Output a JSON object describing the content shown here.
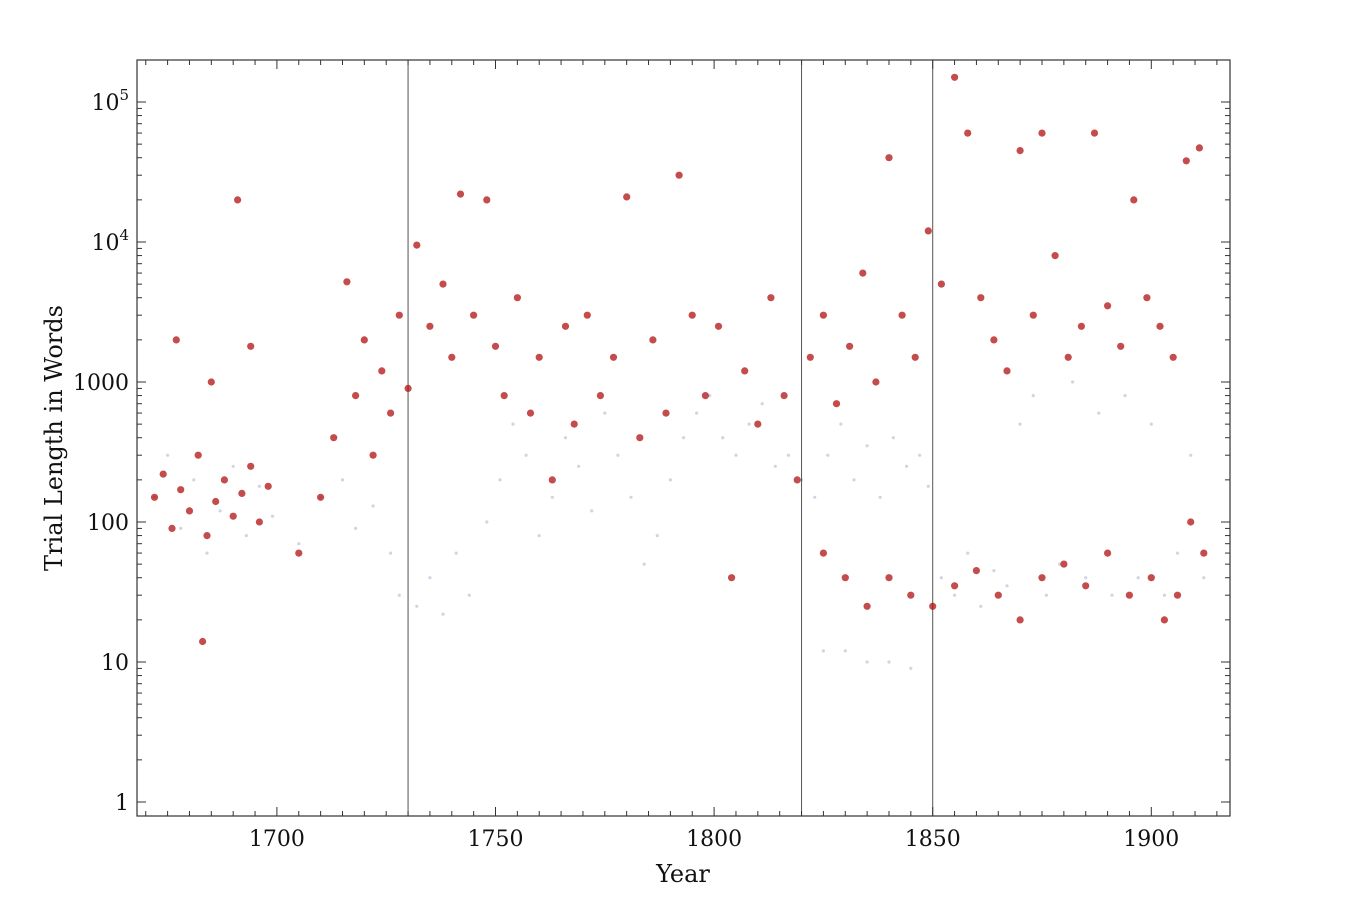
{
  "chart_data": {
    "type": "scatter",
    "xlabel": "Year",
    "ylabel": "Trial Length in Words",
    "xlim": [
      1668,
      1918
    ],
    "ylim_log10": [
      -0.1,
      5.3
    ],
    "y_scale": "log",
    "grid": false,
    "x_ticks": [
      {
        "value": 1700,
        "label": "1700"
      },
      {
        "value": 1750,
        "label": "1750"
      },
      {
        "value": 1800,
        "label": "1800"
      },
      {
        "value": 1850,
        "label": "1850"
      },
      {
        "value": 1900,
        "label": "1900"
      }
    ],
    "y_ticks": [
      {
        "value": 1,
        "base": "1",
        "exp": ""
      },
      {
        "value": 10,
        "base": "10",
        "exp": ""
      },
      {
        "value": 100,
        "base": "100",
        "exp": ""
      },
      {
        "value": 1000,
        "base": "1000",
        "exp": ""
      },
      {
        "value": 10000,
        "base": "10",
        "exp": "4"
      },
      {
        "value": 100000,
        "base": "10",
        "exp": "5"
      }
    ],
    "vertical_lines": [
      1730,
      1820,
      1850
    ],
    "series": [
      {
        "color": "#2b3a8f",
        "opacity": 0.22,
        "points": [
          [
            1672,
            150
          ],
          [
            1675,
            300
          ],
          [
            1678,
            90
          ],
          [
            1681,
            200
          ],
          [
            1684,
            60
          ],
          [
            1687,
            120
          ],
          [
            1690,
            250
          ],
          [
            1693,
            80
          ],
          [
            1696,
            180
          ],
          [
            1699,
            110
          ],
          [
            1705,
            70
          ],
          [
            1710,
            150
          ],
          [
            1715,
            200
          ],
          [
            1718,
            90
          ],
          [
            1722,
            130
          ],
          [
            1726,
            60
          ],
          [
            1728,
            30
          ],
          [
            1732,
            25
          ],
          [
            1735,
            40
          ],
          [
            1738,
            22
          ],
          [
            1741,
            60
          ],
          [
            1744,
            30
          ],
          [
            1748,
            100
          ],
          [
            1751,
            200
          ],
          [
            1754,
            500
          ],
          [
            1757,
            300
          ],
          [
            1760,
            80
          ],
          [
            1763,
            150
          ],
          [
            1766,
            400
          ],
          [
            1769,
            250
          ],
          [
            1772,
            120
          ],
          [
            1775,
            600
          ],
          [
            1778,
            300
          ],
          [
            1781,
            150
          ],
          [
            1784,
            50
          ],
          [
            1787,
            80
          ],
          [
            1790,
            200
          ],
          [
            1793,
            400
          ],
          [
            1796,
            600
          ],
          [
            1799,
            800
          ],
          [
            1802,
            400
          ],
          [
            1805,
            300
          ],
          [
            1808,
            500
          ],
          [
            1811,
            700
          ],
          [
            1814,
            250
          ],
          [
            1817,
            300
          ],
          [
            1820,
            200
          ],
          [
            1823,
            150
          ],
          [
            1826,
            300
          ],
          [
            1829,
            500
          ],
          [
            1832,
            200
          ],
          [
            1835,
            350
          ],
          [
            1838,
            150
          ],
          [
            1841,
            400
          ],
          [
            1844,
            250
          ],
          [
            1847,
            300
          ],
          [
            1849,
            180
          ],
          [
            1852,
            40
          ],
          [
            1855,
            30
          ],
          [
            1858,
            60
          ],
          [
            1861,
            25
          ],
          [
            1864,
            45
          ],
          [
            1867,
            35
          ],
          [
            1870,
            500
          ],
          [
            1873,
            800
          ],
          [
            1876,
            30
          ],
          [
            1879,
            50
          ],
          [
            1882,
            1000
          ],
          [
            1885,
            40
          ],
          [
            1888,
            600
          ],
          [
            1891,
            30
          ],
          [
            1894,
            800
          ],
          [
            1897,
            40
          ],
          [
            1900,
            500
          ],
          [
            1903,
            30
          ],
          [
            1906,
            60
          ],
          [
            1909,
            300
          ],
          [
            1912,
            40
          ],
          [
            1835,
            10
          ],
          [
            1840,
            10
          ],
          [
            1845,
            9
          ],
          [
            1830,
            12
          ],
          [
            1825,
            12
          ]
        ]
      },
      {
        "color": "#b01010",
        "opacity": 0.75,
        "points": [
          [
            1672,
            150
          ],
          [
            1674,
            220
          ],
          [
            1676,
            90
          ],
          [
            1678,
            170
          ],
          [
            1680,
            120
          ],
          [
            1682,
            300
          ],
          [
            1684,
            80
          ],
          [
            1686,
            140
          ],
          [
            1688,
            200
          ],
          [
            1690,
            110
          ],
          [
            1692,
            160
          ],
          [
            1694,
            250
          ],
          [
            1696,
            100
          ],
          [
            1698,
            180
          ],
          [
            1677,
            2000
          ],
          [
            1691,
            20000
          ],
          [
            1683,
            14
          ],
          [
            1685,
            1000
          ],
          [
            1694,
            1800
          ],
          [
            1705,
            60
          ],
          [
            1710,
            150
          ],
          [
            1713,
            400
          ],
          [
            1716,
            5200
          ],
          [
            1718,
            800
          ],
          [
            1720,
            2000
          ],
          [
            1722,
            300
          ],
          [
            1724,
            1200
          ],
          [
            1726,
            600
          ],
          [
            1728,
            3000
          ],
          [
            1730,
            900
          ],
          [
            1732,
            9500
          ],
          [
            1735,
            2500
          ],
          [
            1738,
            5000
          ],
          [
            1740,
            1500
          ],
          [
            1742,
            22000
          ],
          [
            1745,
            3000
          ],
          [
            1748,
            20000
          ],
          [
            1750,
            1800
          ],
          [
            1752,
            800
          ],
          [
            1755,
            4000
          ],
          [
            1758,
            600
          ],
          [
            1760,
            1500
          ],
          [
            1763,
            200
          ],
          [
            1766,
            2500
          ],
          [
            1768,
            500
          ],
          [
            1771,
            3000
          ],
          [
            1774,
            800
          ],
          [
            1777,
            1500
          ],
          [
            1780,
            21000
          ],
          [
            1783,
            400
          ],
          [
            1786,
            2000
          ],
          [
            1789,
            600
          ],
          [
            1792,
            30000
          ],
          [
            1795,
            3000
          ],
          [
            1798,
            800
          ],
          [
            1801,
            2500
          ],
          [
            1804,
            40
          ],
          [
            1807,
            1200
          ],
          [
            1810,
            500
          ],
          [
            1813,
            4000
          ],
          [
            1816,
            800
          ],
          [
            1819,
            200
          ],
          [
            1822,
            1500
          ],
          [
            1825,
            3000
          ],
          [
            1828,
            700
          ],
          [
            1831,
            1800
          ],
          [
            1834,
            6000
          ],
          [
            1837,
            1000
          ],
          [
            1840,
            40000
          ],
          [
            1843,
            3000
          ],
          [
            1846,
            1500
          ],
          [
            1849,
            12000
          ],
          [
            1852,
            5000
          ],
          [
            1855,
            150000
          ],
          [
            1858,
            60000
          ],
          [
            1861,
            4000
          ],
          [
            1864,
            2000
          ],
          [
            1867,
            1200
          ],
          [
            1870,
            45000
          ],
          [
            1873,
            3000
          ],
          [
            1875,
            60000
          ],
          [
            1878,
            8000
          ],
          [
            1881,
            1500
          ],
          [
            1884,
            2500
          ],
          [
            1887,
            60000
          ],
          [
            1890,
            3500
          ],
          [
            1893,
            1800
          ],
          [
            1896,
            20000
          ],
          [
            1899,
            4000
          ],
          [
            1902,
            2500
          ],
          [
            1905,
            1500
          ],
          [
            1908,
            38000
          ],
          [
            1911,
            47000
          ],
          [
            1825,
            60
          ],
          [
            1830,
            40
          ],
          [
            1835,
            25
          ],
          [
            1840,
            40
          ],
          [
            1845,
            30
          ],
          [
            1850,
            25
          ],
          [
            1855,
            35
          ],
          [
            1860,
            45
          ],
          [
            1865,
            30
          ],
          [
            1870,
            20
          ],
          [
            1875,
            40
          ],
          [
            1880,
            50
          ],
          [
            1885,
            35
          ],
          [
            1890,
            60
          ],
          [
            1895,
            30
          ],
          [
            1900,
            40
          ],
          [
            1903,
            20
          ],
          [
            1906,
            30
          ],
          [
            1909,
            100
          ],
          [
            1912,
            60
          ]
        ]
      }
    ]
  }
}
